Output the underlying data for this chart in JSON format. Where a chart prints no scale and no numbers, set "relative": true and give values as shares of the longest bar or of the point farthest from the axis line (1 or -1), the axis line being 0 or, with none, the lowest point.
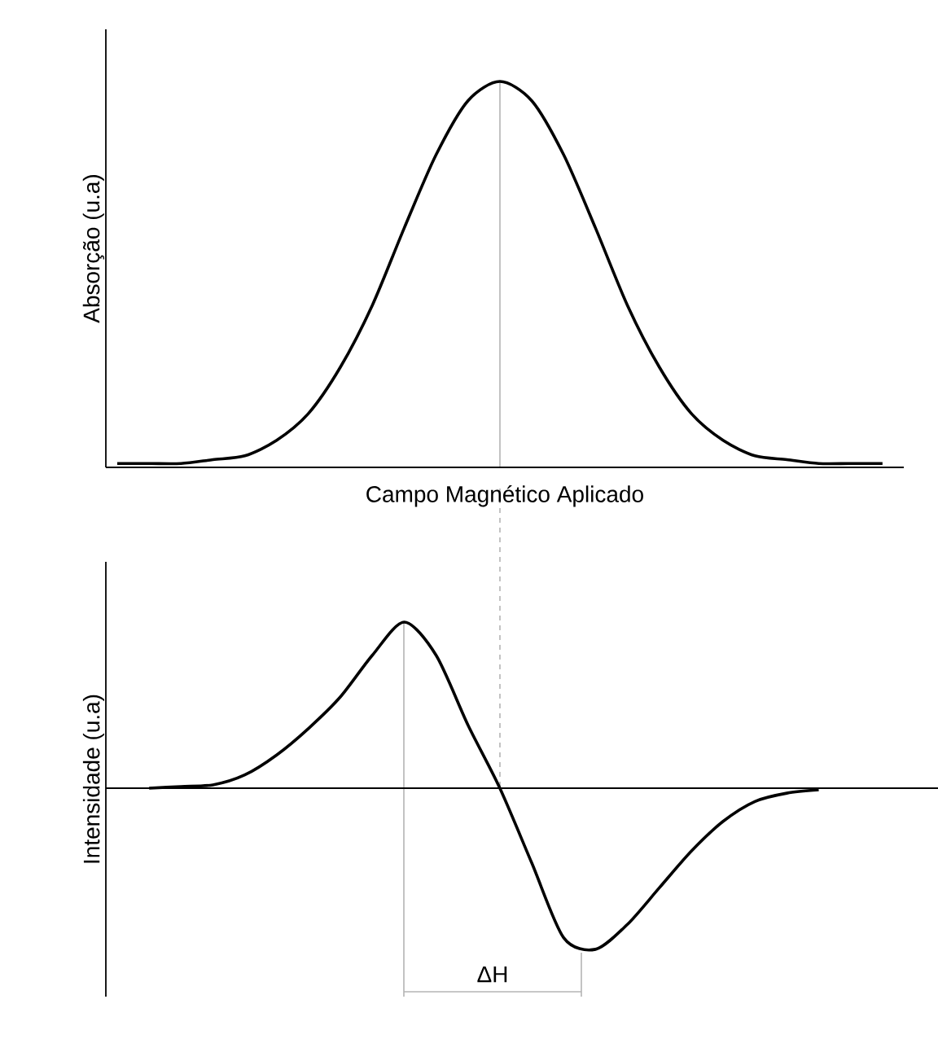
{
  "chart_data": [
    {
      "type": "line",
      "relative": true,
      "ylabel": "Absorção (u.a)",
      "xlabel": "Campo Magnético Aplicado",
      "categories": [
        null,
        null,
        null,
        null,
        null,
        null,
        null,
        null,
        null,
        null,
        null,
        null,
        null,
        null,
        null,
        null,
        null,
        null,
        null,
        null,
        null,
        null,
        null,
        null,
        null
      ],
      "series": [
        {
          "color": "#000000",
          "values": [
            0.01,
            0.01,
            0.01,
            0.02,
            0.03,
            0.07,
            0.14,
            0.26,
            0.42,
            0.62,
            0.81,
            0.95,
            1,
            0.95,
            0.81,
            0.62,
            0.42,
            0.26,
            0.14,
            0.07,
            0.03,
            0.02,
            0.01,
            0.01,
            0.01
          ]
        }
      ]
    },
    {
      "type": "line",
      "relative": true,
      "ylabel": "Intensidade (u.a)",
      "categories": [
        null,
        null,
        null,
        null,
        null,
        null,
        null,
        null,
        null,
        null,
        null,
        null,
        null,
        null,
        null,
        null,
        null,
        null,
        null,
        null,
        null,
        null,
        null,
        null,
        null
      ],
      "series": [
        {
          "color": "#000000",
          "values": [
            null,
            0,
            0.01,
            0.02,
            0.08,
            0.2,
            0.36,
            0.55,
            0.8,
            1,
            0.8,
            0.38,
            0,
            -0.45,
            -0.9,
            -0.97,
            -0.82,
            -0.6,
            -0.38,
            -0.2,
            -0.08,
            -0.03,
            -0.01,
            null,
            null
          ]
        }
      ],
      "annotations": [
        "ΔH"
      ]
    }
  ]
}
